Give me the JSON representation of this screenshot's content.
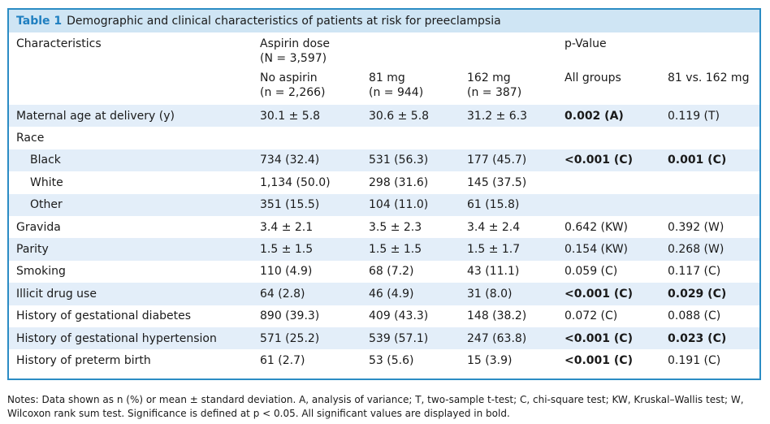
{
  "caption": {
    "label": "Table 1",
    "title": "Demographic and clinical characteristics of patients at risk for preeclampsia"
  },
  "header": {
    "characteristics": "Characteristics",
    "aspirin_dose": "Aspirin dose",
    "aspirin_n": "(N = 3,597)",
    "pvalue": "p-Value",
    "groups": [
      {
        "name": "No aspirin",
        "n": "(n = 2,266)"
      },
      {
        "name": "81 mg",
        "n": "(n = 944)"
      },
      {
        "name": "162 mg",
        "n": "(n = 387)"
      }
    ],
    "p_all": "All groups",
    "p_81_162": "81 vs. 162 mg"
  },
  "rows": [
    {
      "label": "Maternal age at delivery (y)",
      "no": "30.1 ± 5.8",
      "m81": "30.6 ± 5.8",
      "m162": "31.2 ± 6.3",
      "pall": "0.002 (A)",
      "pall_bold": true,
      "p81": "0.119 (T)",
      "p81_bold": false,
      "indent": false,
      "shade": true
    },
    {
      "label": "Race",
      "no": "",
      "m81": "",
      "m162": "",
      "pall": "",
      "pall_bold": false,
      "p81": "",
      "p81_bold": false,
      "indent": false,
      "shade": false
    },
    {
      "label": "Black",
      "no": "734 (32.4)",
      "m81": "531 (56.3)",
      "m162": "177 (45.7)",
      "pall": "<0.001 (C)",
      "pall_bold": true,
      "p81": "0.001 (C)",
      "p81_bold": true,
      "indent": true,
      "shade": true
    },
    {
      "label": "White",
      "no": "1,134 (50.0)",
      "m81": "298 (31.6)",
      "m162": "145 (37.5)",
      "pall": "",
      "pall_bold": false,
      "p81": "",
      "p81_bold": false,
      "indent": true,
      "shade": false
    },
    {
      "label": "Other",
      "no": "351 (15.5)",
      "m81": "104 (11.0)",
      "m162": "61 (15.8)",
      "pall": "",
      "pall_bold": false,
      "p81": "",
      "p81_bold": false,
      "indent": true,
      "shade": true
    },
    {
      "label": "Gravida",
      "no": "3.4 ± 2.1",
      "m81": "3.5 ± 2.3",
      "m162": "3.4 ± 2.4",
      "pall": "0.642 (KW)",
      "pall_bold": false,
      "p81": "0.392 (W)",
      "p81_bold": false,
      "indent": false,
      "shade": false
    },
    {
      "label": "Parity",
      "no": "1.5 ± 1.5",
      "m81": "1.5 ± 1.5",
      "m162": "1.5 ± 1.7",
      "pall": "0.154 (KW)",
      "pall_bold": false,
      "p81": "0.268 (W)",
      "p81_bold": false,
      "indent": false,
      "shade": true
    },
    {
      "label": "Smoking",
      "no": "110 (4.9)",
      "m81": "68 (7.2)",
      "m162": "43 (11.1)",
      "pall": "0.059 (C)",
      "pall_bold": false,
      "p81": "0.117 (C)",
      "p81_bold": false,
      "indent": false,
      "shade": false
    },
    {
      "label": "Illicit drug use",
      "no": "64 (2.8)",
      "m81": "46 (4.9)",
      "m162": "31 (8.0)",
      "pall": "<0.001 (C)",
      "pall_bold": true,
      "p81": "0.029 (C)",
      "p81_bold": true,
      "indent": false,
      "shade": true
    },
    {
      "label": "History of gestational diabetes",
      "no": "890 (39.3)",
      "m81": "409 (43.3)",
      "m162": "148 (38.2)",
      "pall": "0.072 (C)",
      "pall_bold": false,
      "p81": "0.088 (C)",
      "p81_bold": false,
      "indent": false,
      "shade": false
    },
    {
      "label": "History of gestational hypertension",
      "no": "571 (25.2)",
      "m81": "539 (57.1)",
      "m162": "247 (63.8)",
      "pall": "<0.001 (C)",
      "pall_bold": true,
      "p81": "0.023 (C)",
      "p81_bold": true,
      "indent": false,
      "shade": true
    },
    {
      "label": "History of preterm birth",
      "no": "61 (2.7)",
      "m81": "53 (5.6)",
      "m162": "15 (3.9)",
      "pall": "<0.001 (C)",
      "pall_bold": true,
      "p81": "0.191 (C)",
      "p81_bold": false,
      "indent": false,
      "shade": false
    }
  ],
  "notes": "Notes: Data shown as n (%) or mean ± standard deviation. A, analysis of variance; T, two-sample t-test; C, chi-square test; KW, Kruskal–Wallis test; W, Wilcoxon rank sum test. Significance is defined at p < 0.05. All significant values are displayed in bold."
}
